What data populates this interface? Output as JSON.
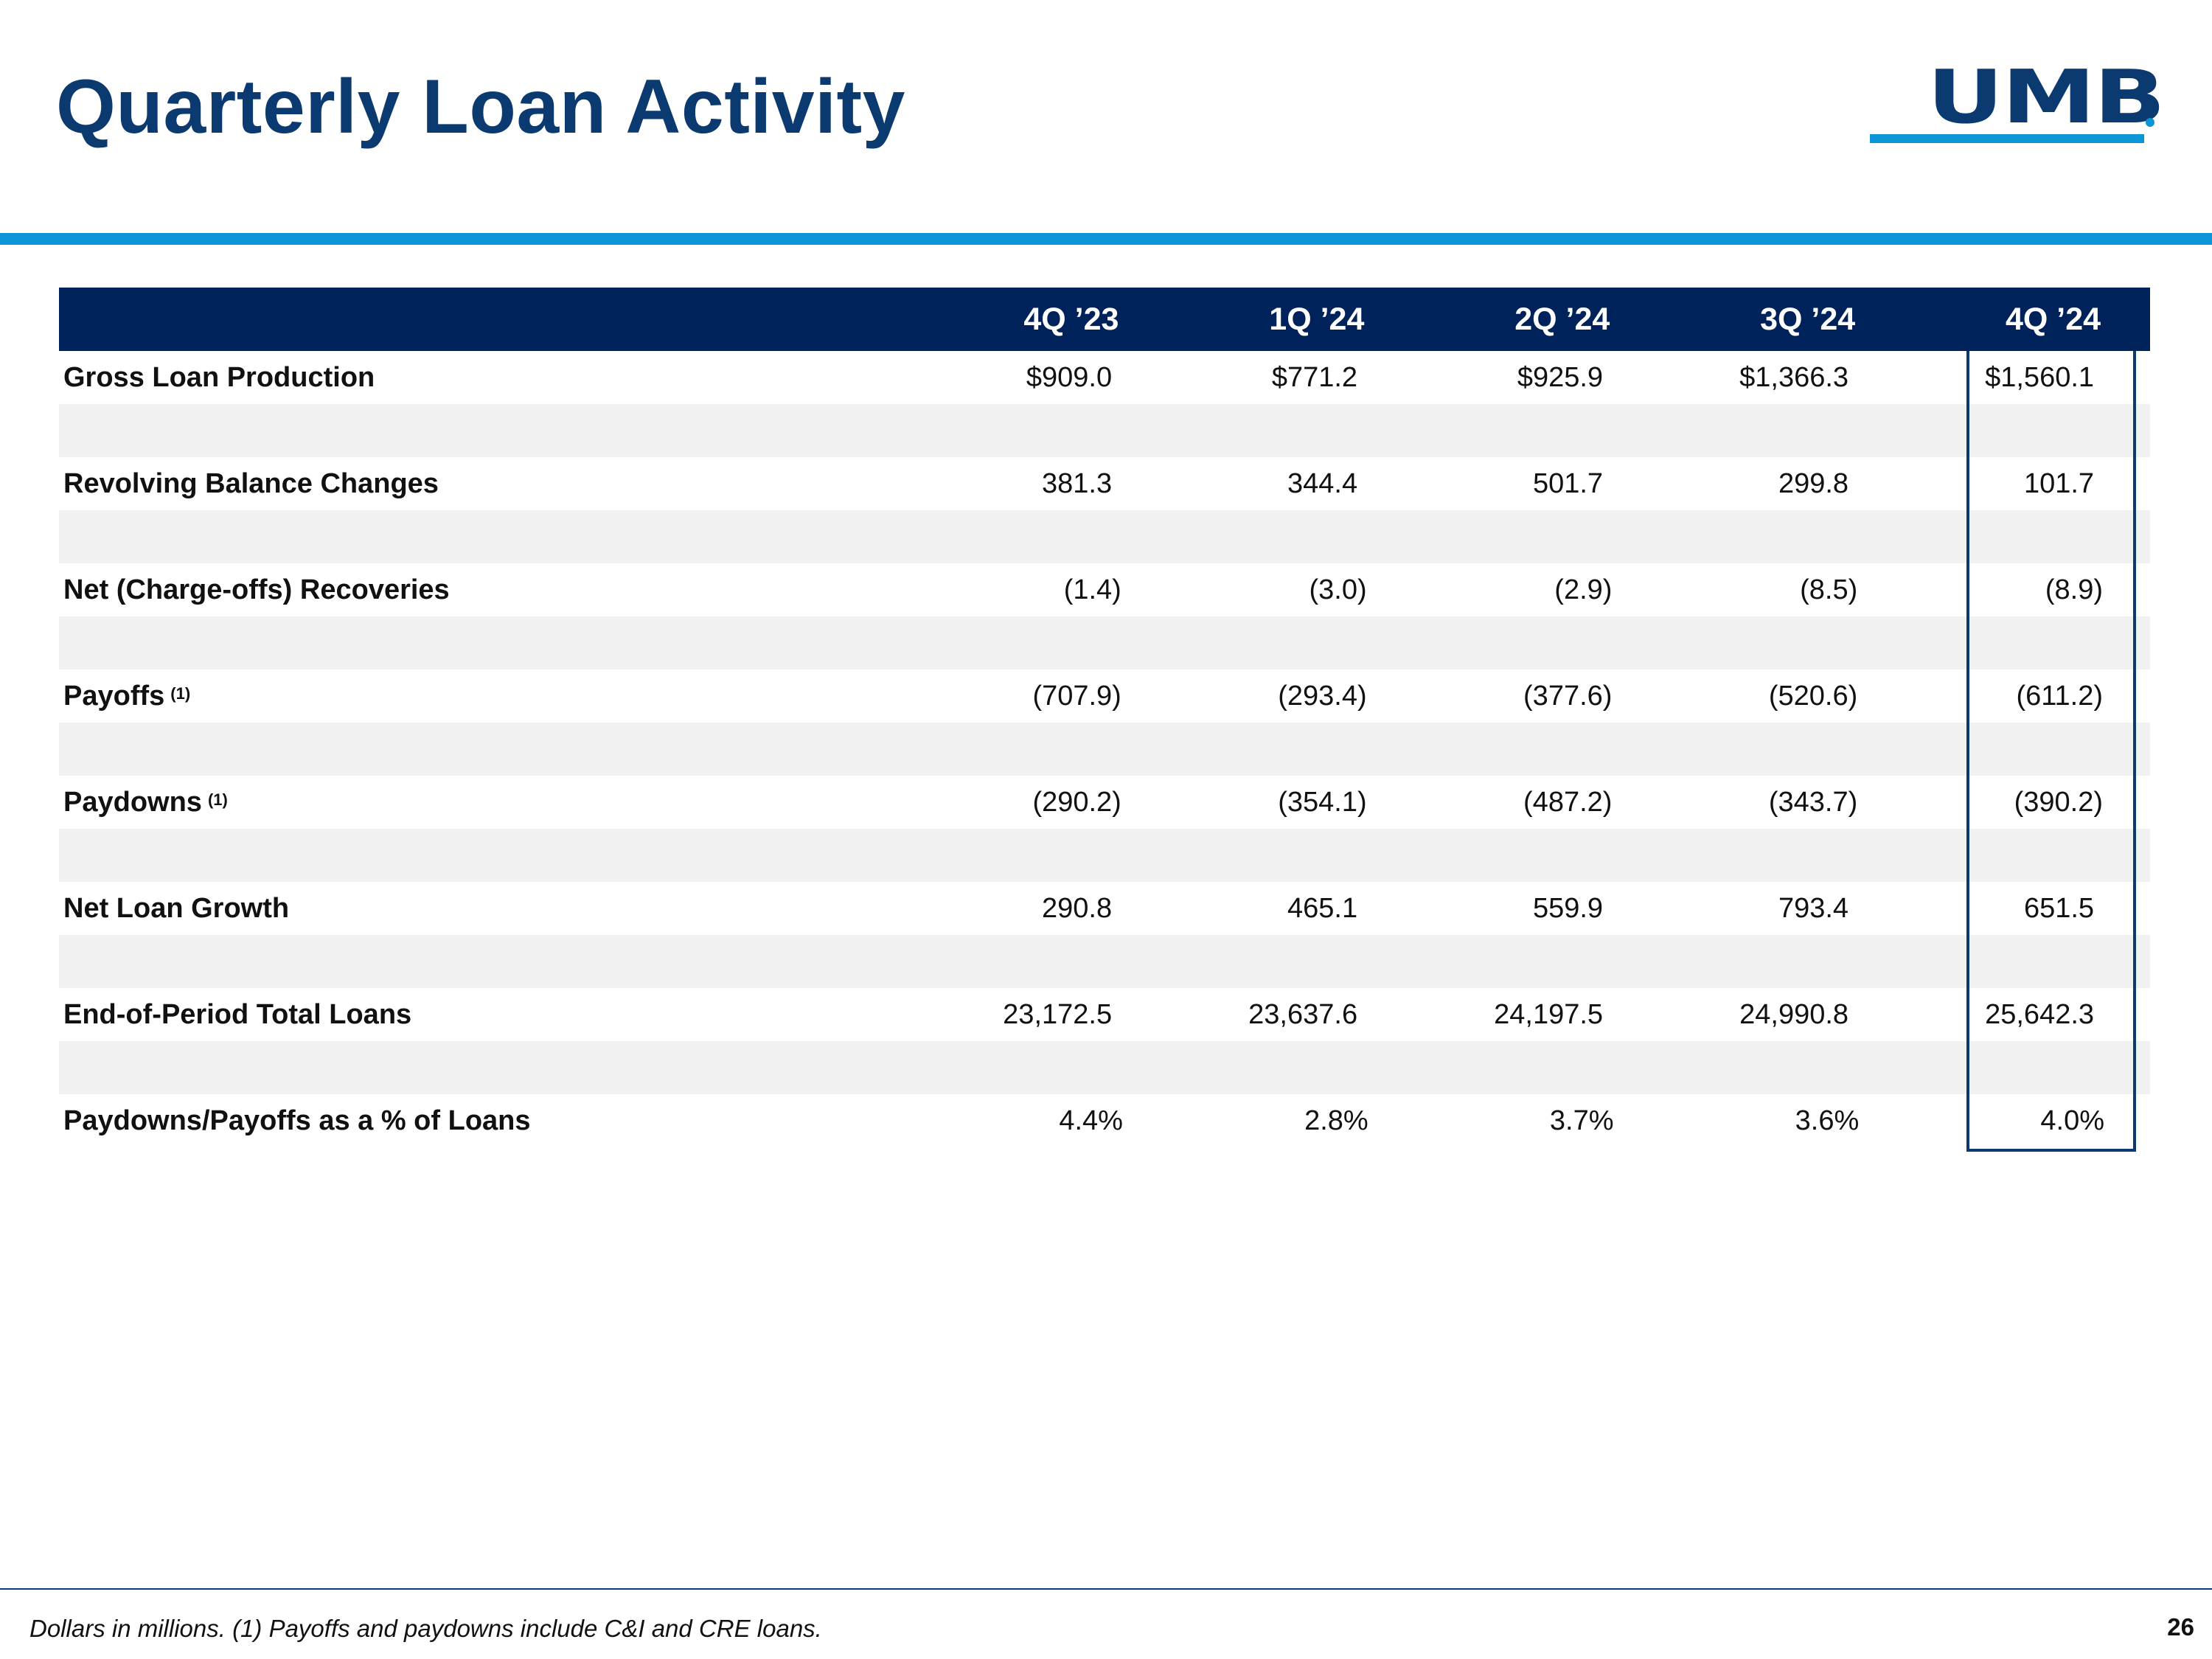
{
  "slide": {
    "title": "Quarterly Loan Activity",
    "logo_text": "UMB",
    "page_number": "26",
    "footnote": "Dollars in millions. (1) Payoffs and paydowns include C&I and CRE loans."
  },
  "table": {
    "headers": [
      "4Q ’23",
      "1Q ’24",
      "2Q ’24",
      "3Q ’24",
      "4Q ’24"
    ],
    "rows": [
      {
        "label": "Gross Loan Production",
        "sup": "",
        "values": [
          "$909.0",
          "$771.2",
          "$925.9",
          "$1,366.3",
          "$1,560.1"
        ]
      },
      {
        "label": "Revolving Balance Changes",
        "sup": "",
        "values": [
          "381.3",
          "344.4",
          "501.7",
          "299.8",
          "101.7"
        ]
      },
      {
        "label": "Net (Charge-offs) Recoveries",
        "sup": "",
        "values": [
          "(1.4)",
          "(3.0)",
          "(2.9)",
          "(8.5)",
          "(8.9)"
        ]
      },
      {
        "label": "Payoffs",
        "sup": "(1)",
        "values": [
          "(707.9)",
          "(293.4)",
          "(377.6)",
          "(520.6)",
          "(611.2)"
        ]
      },
      {
        "label": "Paydowns",
        "sup": "(1)",
        "values": [
          "(290.2)",
          "(354.1)",
          "(487.2)",
          "(343.7)",
          "(390.2)"
        ]
      },
      {
        "label": "Net Loan Growth",
        "sup": "",
        "values": [
          "290.8",
          "465.1",
          "559.9",
          "793.4",
          "651.5"
        ]
      },
      {
        "label": "End-of-Period Total Loans",
        "sup": "",
        "values": [
          "23,172.5",
          "23,637.6",
          "24,197.5",
          "24,990.8",
          "25,642.3"
        ]
      },
      {
        "label": "Paydowns/Payoffs as a % of Loans",
        "sup": "",
        "values": [
          "4.4%",
          "2.8%",
          "3.7%",
          "3.6%",
          "4.0%"
        ]
      }
    ]
  },
  "colors": {
    "brand_navy": "#0a3a6f",
    "header_navy": "#00225a",
    "accent_blue": "#0a96d6",
    "stripe_gray": "#f1f1f1"
  }
}
